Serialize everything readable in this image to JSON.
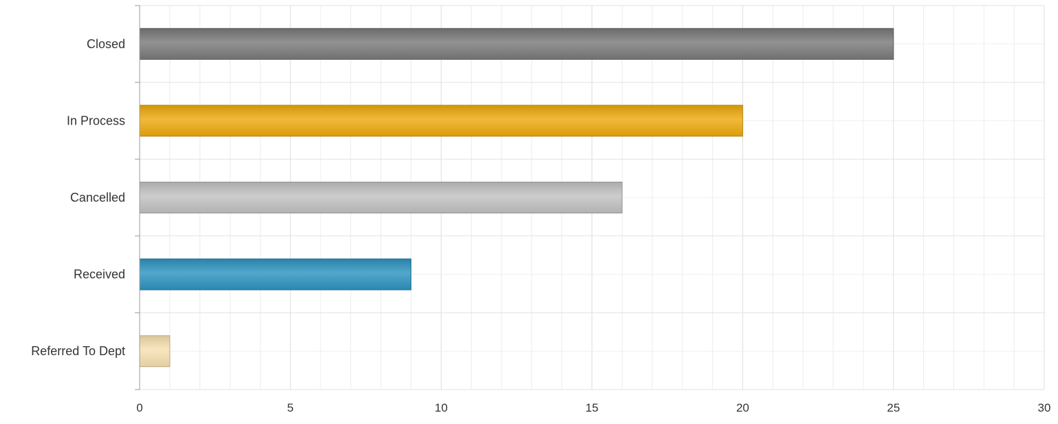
{
  "chart_data": {
    "type": "bar",
    "orientation": "horizontal",
    "categories": [
      "Closed",
      "In Process",
      "Cancelled",
      "Received",
      "Referred To Dept"
    ],
    "values": [
      25,
      20,
      16,
      9,
      1
    ],
    "colors": [
      "#7a7a7a",
      "#eeaa0e",
      "#c2c2c2",
      "#2e94c1",
      "#f8e1b0"
    ],
    "xlim": [
      0,
      30
    ],
    "xticks": [
      0,
      5,
      10,
      15,
      20,
      25,
      30
    ],
    "minor_step": 1,
    "title": "",
    "xlabel": "",
    "ylabel": "",
    "grid": true,
    "legend": "none"
  }
}
